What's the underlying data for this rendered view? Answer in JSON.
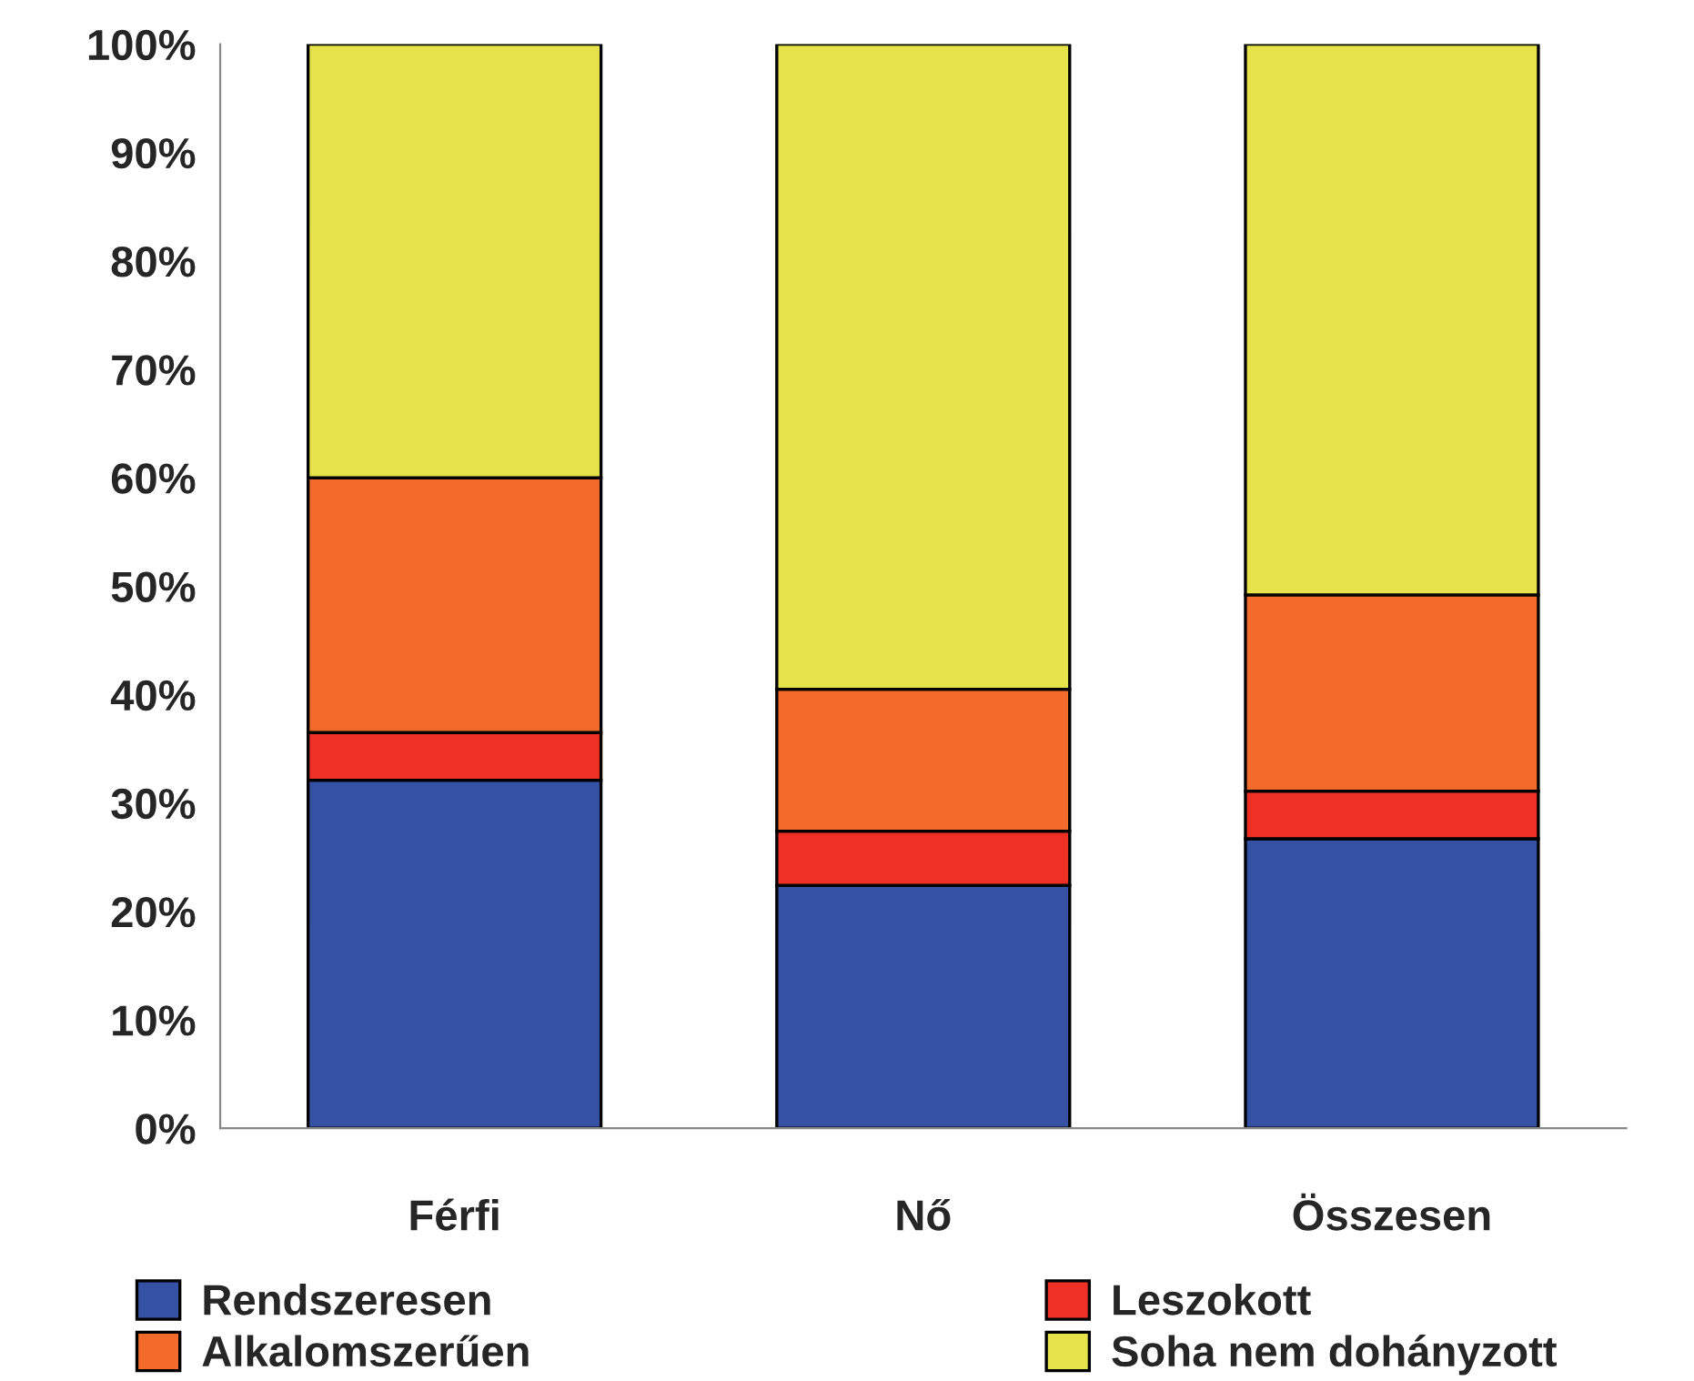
{
  "chart_data": {
    "type": "bar",
    "stacked": true,
    "categories": [
      "Férfi",
      "Nő",
      "Összesen"
    ],
    "series": [
      {
        "name": "Rendszeresen",
        "color": "#3451a3",
        "values": [
          32.1,
          22.4,
          26.7
        ]
      },
      {
        "name": "Leszokott",
        "color": "#ee3124",
        "values": [
          4.4,
          5.0,
          4.4
        ]
      },
      {
        "name": "Alkalomszerűen",
        "color": "#f26b2a",
        "values": [
          23.5,
          13.1,
          18.1
        ]
      },
      {
        "name": "Soha nem dohányzott",
        "color": "#e6e34a",
        "values": [
          40.0,
          59.5,
          50.8
        ]
      }
    ],
    "ylim": [
      0,
      100
    ],
    "yticks": [
      {
        "value": 0,
        "label": "0%"
      },
      {
        "value": 10,
        "label": "10%"
      },
      {
        "value": 20,
        "label": "20%"
      },
      {
        "value": 30,
        "label": "30%"
      },
      {
        "value": 40,
        "label": "40%"
      },
      {
        "value": 50,
        "label": "50%"
      },
      {
        "value": 60,
        "label": "60%"
      },
      {
        "value": 70,
        "label": "70%"
      },
      {
        "value": 80,
        "label": "80%"
      },
      {
        "value": 90,
        "label": "90%"
      },
      {
        "value": 100,
        "label": "100%"
      }
    ],
    "grid": false,
    "legend": "bottom"
  }
}
